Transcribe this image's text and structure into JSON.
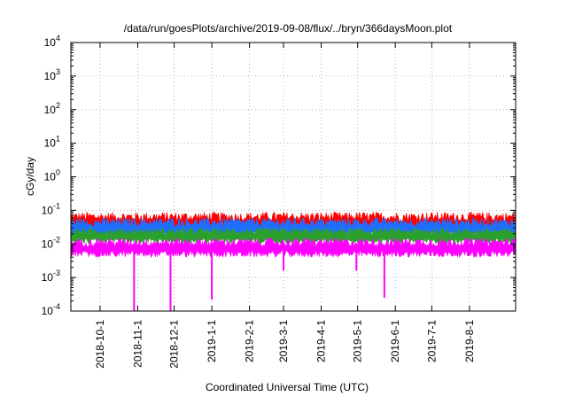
{
  "chart_data": {
    "type": "area",
    "title": "/data/run/goesPlots/archive/2019-09-08/flux/../bryn/366daysMoon.plot",
    "xlabel": "Coordinated Universal Time (UTC)",
    "ylabel": "cGy/day",
    "yscale": "log",
    "ylim": [
      0.0001,
      10000
    ],
    "xlim": [
      "2018-09-07",
      "2019-09-08"
    ],
    "grid": true,
    "y_ticks": [
      {
        "value": 0.0001,
        "base": "10",
        "exp": "-4"
      },
      {
        "value": 0.001,
        "base": "10",
        "exp": "-3"
      },
      {
        "value": 0.01,
        "base": "10",
        "exp": "-2"
      },
      {
        "value": 0.1,
        "base": "10",
        "exp": "-1"
      },
      {
        "value": 1,
        "base": "10",
        "exp": "0"
      },
      {
        "value": 10,
        "base": "10",
        "exp": "1"
      },
      {
        "value": 100,
        "base": "10",
        "exp": "2"
      },
      {
        "value": 1000,
        "base": "10",
        "exp": "3"
      },
      {
        "value": 10000,
        "base": "10",
        "exp": "4"
      }
    ],
    "x_ticks": [
      {
        "date": "2018-10-01",
        "label": "2018-10-1"
      },
      {
        "date": "2018-11-01",
        "label": "2018-11-1"
      },
      {
        "date": "2018-12-01",
        "label": "2018-12-1"
      },
      {
        "date": "2019-01-01",
        "label": "2019-1-1"
      },
      {
        "date": "2019-02-01",
        "label": "2019-2-1"
      },
      {
        "date": "2019-03-01",
        "label": "2019-3-1"
      },
      {
        "date": "2019-04-01",
        "label": "2019-4-1"
      },
      {
        "date": "2019-05-01",
        "label": "2019-5-1"
      },
      {
        "date": "2019-06-01",
        "label": "2019-6-1"
      },
      {
        "date": "2019-07-01",
        "label": "2019-7-1"
      },
      {
        "date": "2019-08-01",
        "label": "2019-8-1"
      }
    ],
    "series": [
      {
        "name": "red",
        "color": "#ff0000",
        "typical_range": [
          0.02,
          0.09
        ]
      },
      {
        "name": "blue",
        "color": "#1f6fff",
        "typical_range": [
          0.015,
          0.06
        ]
      },
      {
        "name": "green",
        "color": "#2ca02c",
        "typical_range": [
          0.01,
          0.03
        ]
      },
      {
        "name": "magenta",
        "color": "#ff00ff",
        "typical_range": [
          0.004,
          0.015
        ]
      }
    ],
    "dips": [
      {
        "date": "2018-10-29",
        "value": 0.0001
      },
      {
        "date": "2018-11-28",
        "value": 0.0001
      },
      {
        "date": "2019-01-01",
        "value": 0.00022
      },
      {
        "date": "2019-03-01",
        "value": 0.0016
      },
      {
        "date": "2019-04-30",
        "value": 0.0016
      },
      {
        "date": "2019-05-23",
        "value": 0.00025
      }
    ]
  }
}
